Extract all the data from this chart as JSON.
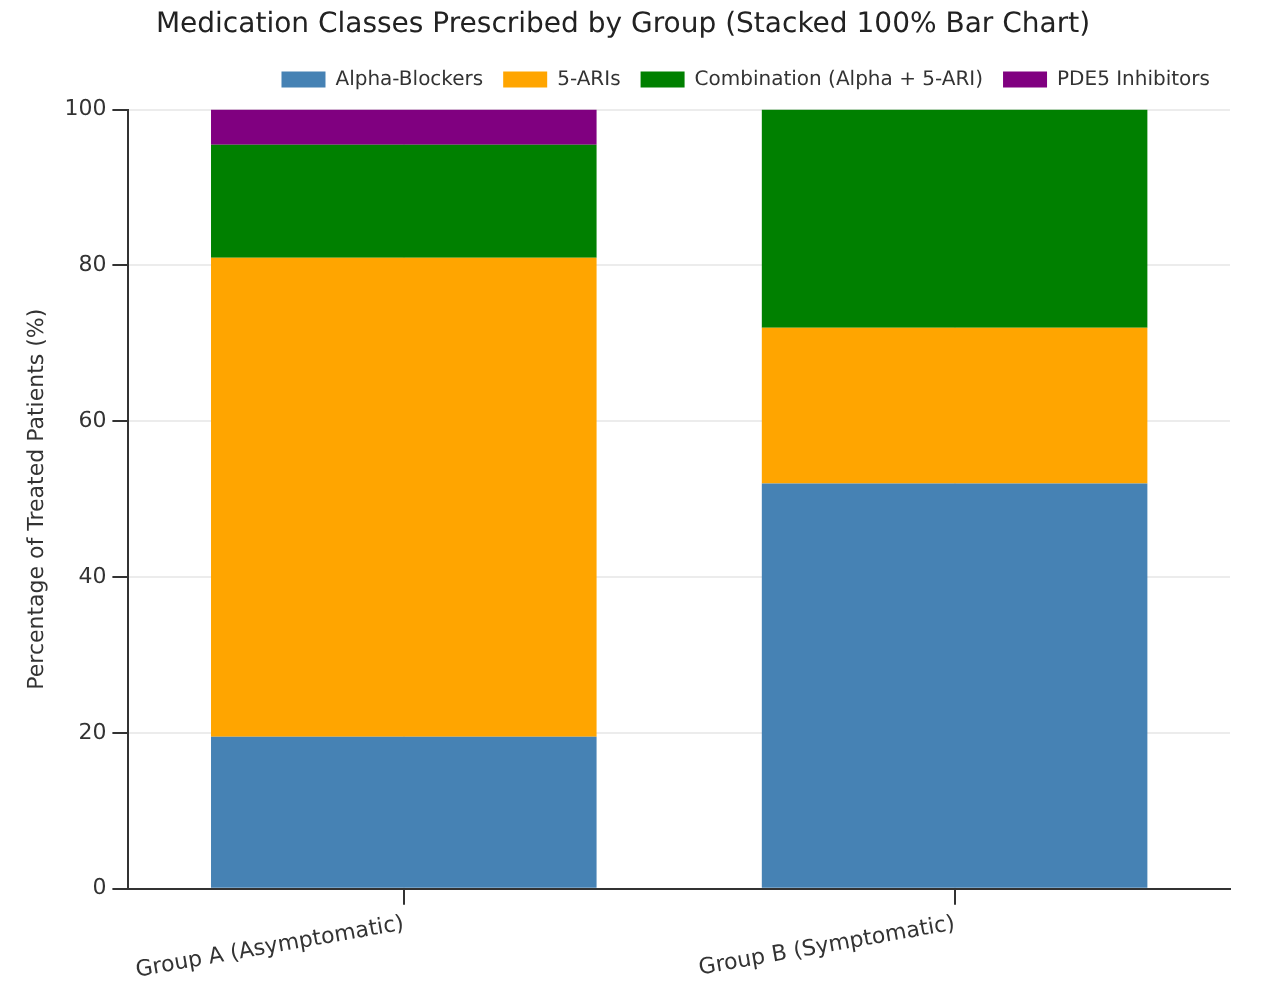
{
  "chart_data": {
    "type": "bar",
    "title": "Medication Classes Prescribed by Group (Stacked 100% Bar Chart)",
    "ylabel": "Percentage of Treated Patients (%)",
    "categories": [
      "Group A (Asymptomatic)",
      "Group B (Symptomatic)"
    ],
    "stacked": true,
    "series": [
      {
        "name": "Alpha-Blockers",
        "color": "#4682b4",
        "values": [
          19.5,
          52
        ]
      },
      {
        "name": "5-ARIs",
        "color": "#ffa500",
        "values": [
          61.5,
          20
        ]
      },
      {
        "name": "Combination (Alpha + 5-ARI)",
        "color": "#008000",
        "values": [
          14.5,
          28
        ]
      },
      {
        "name": "PDE5 Inhibitors",
        "color": "#800080",
        "values": [
          4.5,
          0
        ]
      }
    ],
    "ylim": [
      0,
      100
    ],
    "yticks": [
      0,
      20,
      40,
      60,
      80,
      100
    ],
    "grid": true,
    "legend": "top right"
  }
}
